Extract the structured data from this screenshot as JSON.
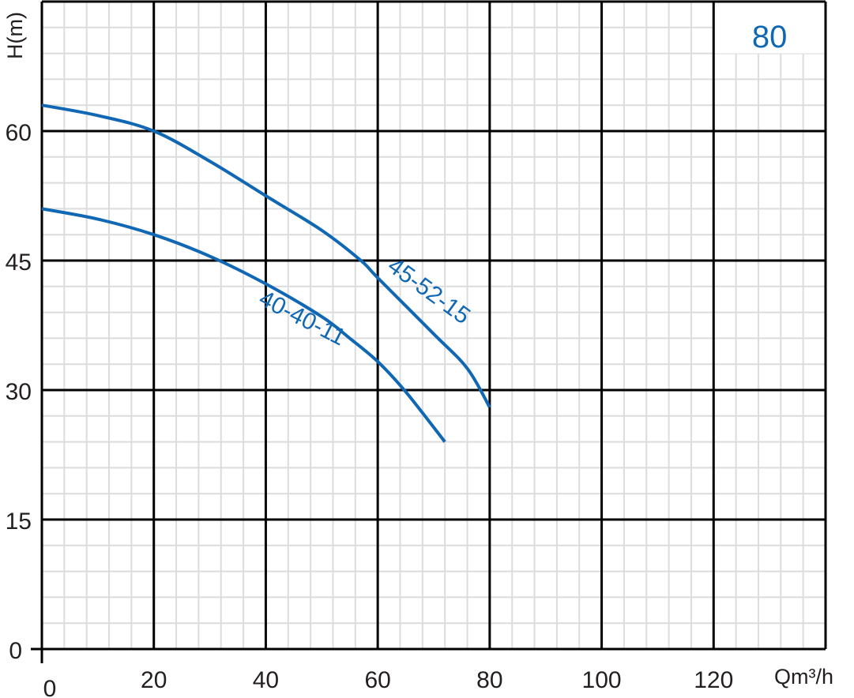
{
  "chart_data": {
    "type": "line",
    "title": "",
    "panel_label": "80",
    "xlabel": "Qm³/h",
    "ylabel": "H(m)",
    "xlim": [
      0,
      140
    ],
    "ylim": [
      0,
      75
    ],
    "x_ticks": [
      0,
      20,
      40,
      60,
      80,
      100,
      120
    ],
    "y_ticks": [
      0,
      15,
      30,
      45,
      60
    ],
    "x_minor_step": 4,
    "y_minor_step": 3,
    "grid": true,
    "colors": {
      "series": "#1068b4",
      "major_grid": "#000000",
      "minor_grid": "#dcdcdc",
      "panel_label": "#1068b4"
    },
    "series": [
      {
        "name": "45-52-15",
        "x": [
          0,
          10,
          20,
          30,
          40,
          50,
          57,
          60,
          70,
          76,
          80
        ],
        "y": [
          63,
          61.8,
          60,
          56.5,
          52.5,
          48.5,
          45,
          43,
          36.5,
          32.5,
          28
        ]
      },
      {
        "name": "40-40-11",
        "x": [
          0,
          10,
          20,
          30,
          40,
          50,
          55,
          60,
          65,
          72
        ],
        "y": [
          51,
          49.8,
          48,
          45.5,
          42.3,
          38.5,
          36,
          33.3,
          29.8,
          24
        ]
      }
    ]
  }
}
